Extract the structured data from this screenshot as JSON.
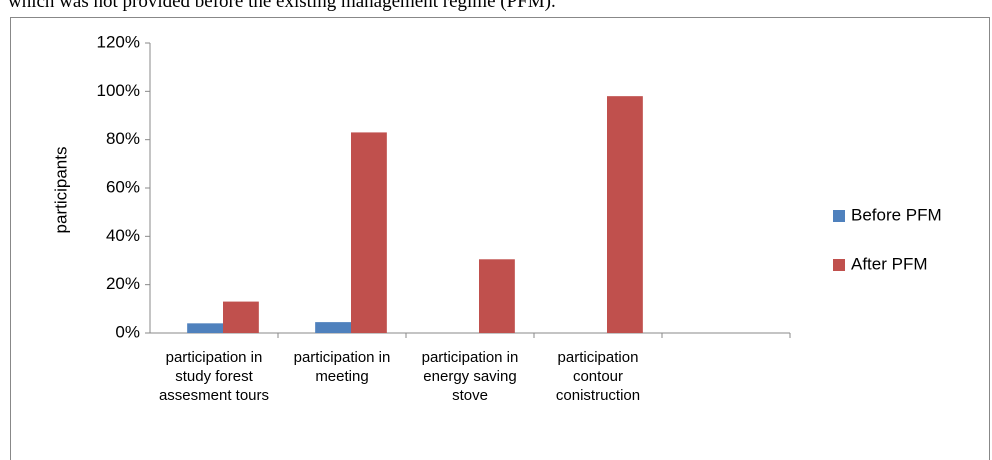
{
  "caption": "which was not provided before the existing management regime (PFM).",
  "chart_data": {
    "type": "bar",
    "ylabel": "participants",
    "categories": [
      "participation in study forest assesment tours",
      "participation in meeting",
      "participation in energy saving stove",
      "participation contour conistruction",
      null
    ],
    "series": [
      {
        "name": "Before PFM",
        "color": "#4f81bd",
        "values": [
          4,
          4.5,
          0,
          0,
          null
        ]
      },
      {
        "name": "After PFM",
        "color": "#c0504d",
        "values": [
          13,
          83,
          30.5,
          98,
          null
        ]
      }
    ],
    "ylim": [
      0,
      120
    ],
    "yticks": [
      {
        "value": 0,
        "label": "0%"
      },
      {
        "value": 20,
        "label": "20%"
      },
      {
        "value": 40,
        "label": "40%"
      },
      {
        "value": 60,
        "label": "60%"
      },
      {
        "value": 80,
        "label": "80%"
      },
      {
        "value": 100,
        "label": "100%"
      },
      {
        "value": 120,
        "label": "120%"
      }
    ],
    "grid": false,
    "legend": "right"
  }
}
